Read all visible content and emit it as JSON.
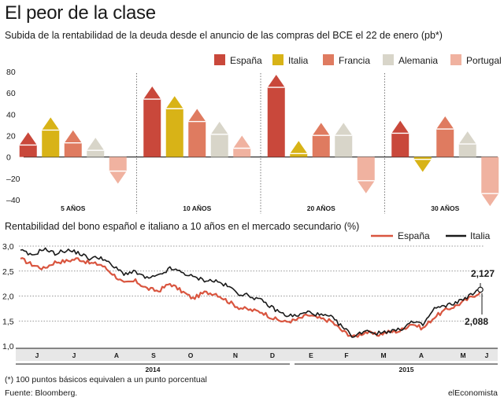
{
  "header": {
    "title": "El peor de la clase",
    "subtitle_bars": "Subida de la rentabilidad de la deuda desde el anuncio de las compras del BCE el 22 de enero (pb*)",
    "subtitle_lines": "Rentabilidad del bono español e italiano a 10 años en el mercado secundario (%)"
  },
  "footer": {
    "footnote": "(*) 100 puntos básicos equivalen a un punto porcentual",
    "source": "Fuente: Bloomberg.",
    "brand": "elEconomista"
  },
  "colors": {
    "España": "#c9483b",
    "Italia": "#d8b317",
    "Francia": "#df7b60",
    "Alemania": "#d8d5c9",
    "Portugal": "#f0b2a0",
    "italia_line": "#1a1a1a",
    "espana_line": "#d9553f"
  },
  "chart_data": [
    {
      "type": "bar",
      "categories": [
        "5 AÑOS",
        "10 AÑOS",
        "20 AÑOS",
        "30 AÑOS"
      ],
      "series": [
        {
          "name": "España",
          "values": [
            23,
            66,
            77,
            34
          ]
        },
        {
          "name": "Italia",
          "values": [
            37,
            57,
            15,
            -14
          ]
        },
        {
          "name": "Francia",
          "values": [
            25,
            45,
            32,
            38
          ]
        },
        {
          "name": "Alemania",
          "values": [
            18,
            33,
            32,
            24
          ]
        },
        {
          "name": "Portugal",
          "values": [
            -25,
            20,
            -34,
            -46
          ]
        }
      ],
      "ylim": [
        -40,
        80
      ],
      "yticks": [
        "80",
        "60",
        "40",
        "20",
        "0",
        "–20",
        "–40"
      ],
      "legend": "top-right"
    },
    {
      "type": "line",
      "months": [
        "J",
        "J",
        "A",
        "S",
        "O",
        "N",
        "D",
        "E",
        "F",
        "M",
        "A",
        "M",
        "J"
      ],
      "years": [
        "2014",
        "2015"
      ],
      "ylim": [
        1.0,
        3.0
      ],
      "yticks": [
        "3,0",
        "2,5",
        "2,0",
        "1,5",
        "1,0"
      ],
      "series": [
        {
          "name": "España",
          "values": [
            2.75,
            2.63,
            2.55,
            2.68,
            2.7,
            2.75,
            2.66,
            2.63,
            2.45,
            2.25,
            2.3,
            2.15,
            2.1,
            2.25,
            2.1,
            1.95,
            2.07,
            2.05,
            1.9,
            1.77,
            1.72,
            1.68,
            1.55,
            1.48,
            1.52,
            1.62,
            1.55,
            1.5,
            1.3,
            1.18,
            1.28,
            1.22,
            1.28,
            1.3,
            1.45,
            1.35,
            1.58,
            1.72,
            1.82,
            1.95,
            2.088
          ]
        },
        {
          "name": "Italia",
          "values": [
            2.92,
            2.8,
            2.95,
            2.85,
            2.92,
            2.87,
            2.75,
            2.78,
            2.6,
            2.45,
            2.48,
            2.35,
            2.4,
            2.55,
            2.48,
            2.38,
            2.32,
            2.3,
            2.2,
            2.05,
            2.0,
            1.9,
            1.75,
            1.62,
            1.6,
            1.68,
            1.62,
            1.58,
            1.38,
            1.18,
            1.32,
            1.25,
            1.3,
            1.32,
            1.48,
            1.42,
            1.75,
            1.8,
            1.88,
            2.0,
            2.127
          ]
        }
      ],
      "annotations": [
        "2,127",
        "2,088"
      ],
      "legend": "top-right"
    }
  ]
}
